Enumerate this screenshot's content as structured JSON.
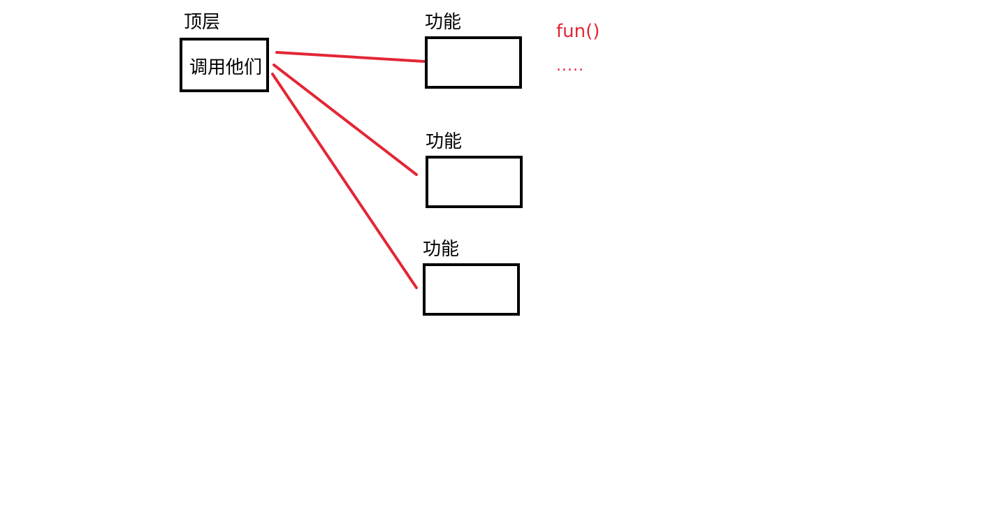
{
  "colors": {
    "stroke": "#000000",
    "connector": "#e32636",
    "note": "#e32636"
  },
  "top_layer": {
    "title": "顶层",
    "content": "调用他们"
  },
  "functions": [
    {
      "title": "功能"
    },
    {
      "title": "功能"
    },
    {
      "title": "功能"
    }
  ],
  "notes": {
    "fun": "fun()",
    "ellipsis": "....."
  }
}
